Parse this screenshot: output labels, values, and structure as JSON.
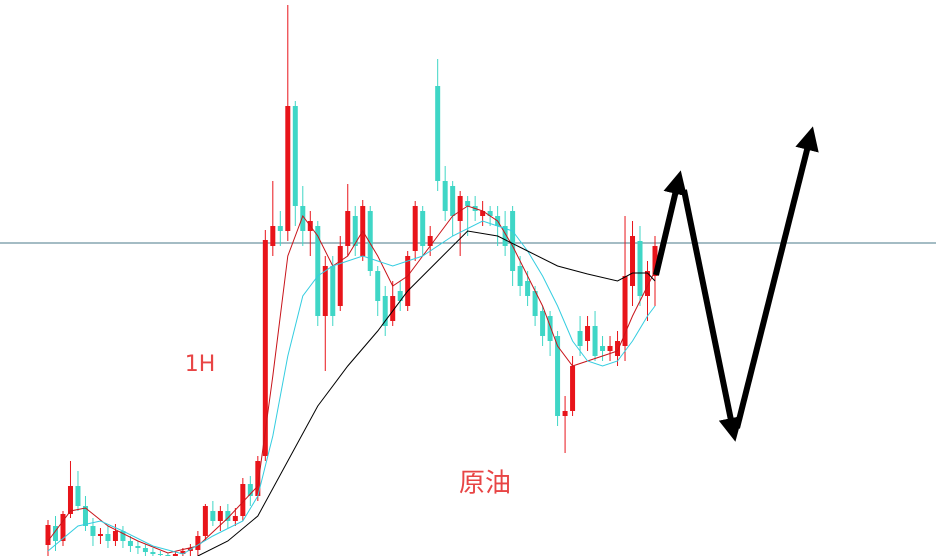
{
  "chart_data": {
    "type": "candlestick",
    "annotations": [
      "1H",
      "原油"
    ],
    "categories": [
      null,
      null,
      null,
      null,
      null,
      null,
      null,
      null,
      null,
      null,
      null,
      null,
      null,
      null,
      null,
      null,
      null,
      null,
      null,
      null,
      null,
      null,
      null,
      null,
      null,
      null,
      null,
      null,
      null,
      null,
      null,
      null,
      null,
      null,
      null,
      null,
      null,
      null,
      null,
      null,
      null,
      null,
      null,
      null,
      null,
      null,
      null,
      null,
      null,
      null,
      null,
      null,
      null,
      null,
      null,
      null,
      null,
      null,
      null,
      null,
      null,
      null,
      null,
      null,
      null,
      null,
      null,
      null,
      null,
      null,
      null,
      null,
      null,
      null,
      null,
      null,
      null,
      null,
      null,
      null,
      null,
      null
    ],
    "open": [
      11,
      30,
      15,
      42,
      70,
      50,
      30,
      20,
      22,
      15,
      25,
      15,
      10,
      8,
      4,
      2,
      1,
      0,
      2,
      5,
      6,
      20,
      45,
      35,
      45,
      35,
      40,
      72,
      60,
      100,
      310,
      330,
      325,
      450,
      350,
      325,
      330,
      240,
      290,
      250,
      310,
      340,
      300,
      345,
      285,
      260,
      235,
      265,
      250,
      305,
      345,
      310,
      470,
      375,
      370,
      335,
      355,
      350,
      340,
      345,
      340,
      330,
      345,
      290,
      275,
      265,
      245,
      240,
      220,
      140,
      145,
      225,
      215,
      230,
      210,
      205,
      200,
      210,
      270,
      315,
      260,
      280
    ],
    "high": [
      36,
      40,
      45,
      95,
      85,
      60,
      38,
      28,
      30,
      32,
      30,
      20,
      15,
      12,
      8,
      5,
      3,
      4,
      8,
      12,
      25,
      52,
      55,
      50,
      52,
      48,
      78,
      80,
      100,
      326,
      375,
      345,
      551,
      455,
      370,
      345,
      335,
      300,
      300,
      320,
      372,
      350,
      356,
      350,
      290,
      270,
      275,
      275,
      305,
      355,
      350,
      330,
      497,
      390,
      375,
      365,
      360,
      360,
      355,
      350,
      350,
      345,
      350,
      300,
      285,
      270,
      250,
      245,
      225,
      160,
      200,
      240,
      240,
      245,
      220,
      220,
      225,
      340,
      335,
      330,
      295,
      320
    ],
    "low": [
      0,
      5,
      10,
      38,
      45,
      25,
      10,
      12,
      8,
      10,
      8,
      4,
      2,
      0,
      0,
      0,
      0,
      0,
      0,
      0,
      0,
      15,
      30,
      25,
      28,
      30,
      35,
      50,
      55,
      95,
      300,
      310,
      315,
      330,
      310,
      300,
      230,
      185,
      230,
      245,
      300,
      300,
      295,
      280,
      240,
      220,
      230,
      245,
      245,
      295,
      300,
      300,
      365,
      335,
      320,
      300,
      320,
      335,
      330,
      330,
      310,
      300,
      270,
      260,
      250,
      230,
      210,
      200,
      130,
      103,
      140,
      200,
      205,
      195,
      195,
      195,
      190,
      195,
      250,
      250,
      235,
      250
    ],
    "close": [
      31,
      15,
      42,
      70,
      50,
      30,
      20,
      22,
      15,
      25,
      15,
      10,
      8,
      4,
      2,
      1,
      0,
      2,
      5,
      8,
      20,
      50,
      35,
      45,
      35,
      40,
      72,
      60,
      95,
      316,
      330,
      325,
      450,
      350,
      325,
      335,
      240,
      290,
      240,
      310,
      345,
      310,
      350,
      285,
      255,
      230,
      260,
      255,
      300,
      350,
      310,
      320,
      375,
      345,
      340,
      360,
      350,
      345,
      345,
      340,
      330,
      310,
      285,
      270,
      260,
      240,
      220,
      215,
      140,
      145,
      190,
      210,
      230,
      200,
      205,
      210,
      215,
      280,
      320,
      260,
      285,
      310
    ],
    "up_color": "#e8141a",
    "down_color": "#3fd6c6",
    "lines": [
      {
        "color": "#c8141a",
        "x": [
          0,
          3,
          5,
          8,
          12,
          16,
          20,
          24,
          28,
          30,
          32,
          34,
          36,
          38,
          40,
          42,
          44,
          46,
          48,
          50,
          52,
          54,
          56,
          58,
          60,
          62,
          64,
          66,
          68,
          70,
          72,
          74,
          76,
          78,
          80,
          81
        ],
        "values": [
          15,
          45,
          48,
          30,
          15,
          3,
          10,
          38,
          70,
          180,
          300,
          340,
          320,
          290,
          300,
          325,
          300,
          270,
          280,
          300,
          320,
          340,
          350,
          345,
          335,
          310,
          280,
          250,
          210,
          190,
          195,
          200,
          205,
          240,
          270,
          285
        ]
      },
      {
        "color": "#34cde0",
        "x": [
          0,
          4,
          7,
          10,
          14,
          18,
          22,
          26,
          28,
          30,
          32,
          34,
          36,
          38,
          40,
          42,
          46,
          50,
          54,
          58,
          62,
          64,
          66,
          68,
          70,
          72,
          74,
          76,
          78,
          80,
          81
        ],
        "values": [
          5,
          30,
          35,
          25,
          10,
          2,
          20,
          35,
          60,
          120,
          200,
          260,
          280,
          290,
          295,
          300,
          290,
          300,
          320,
          335,
          325,
          305,
          280,
          250,
          215,
          195,
          190,
          195,
          215,
          240,
          250
        ]
      },
      {
        "color": "#000000",
        "x": [
          20,
          24,
          28,
          32,
          36,
          40,
          44,
          48,
          52,
          56,
          60,
          64,
          68,
          72,
          76,
          78,
          80,
          81
        ],
        "values": [
          0,
          15,
          40,
          95,
          150,
          190,
          225,
          265,
          295,
          325,
          320,
          305,
          290,
          282,
          275,
          283,
          283,
          275
        ]
      }
    ],
    "hline": 313,
    "hline_color": "#4a7a8a",
    "ylim": [
      0,
      556
    ]
  }
}
